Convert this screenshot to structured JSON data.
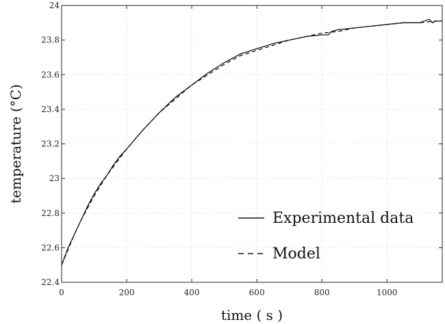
{
  "chart_data": {
    "type": "line",
    "xlabel": "time ( s )",
    "ylabel": "temperature (°C)",
    "xlim": [
      0,
      1170
    ],
    "ylim": [
      22.4,
      24.0
    ],
    "grid": true,
    "legend_position": "bottom-right",
    "x_ticks": [
      0,
      200,
      400,
      600,
      800,
      1000
    ],
    "x_tick_labels": [
      "0",
      "200",
      "400",
      "600",
      "800",
      "1000"
    ],
    "y_ticks": [
      22.4,
      22.6,
      22.8,
      23.0,
      23.2,
      23.4,
      23.6,
      23.8,
      24.0
    ],
    "y_tick_labels": [
      "22.4",
      "22.6",
      "22.8",
      "23",
      "23.2",
      "23.4",
      "23.6",
      "23.8",
      "24"
    ],
    "series": [
      {
        "name": "Experimental data",
        "style": "solid",
        "color": "#111111",
        "x": [
          0,
          20,
          40,
          60,
          80,
          100,
          120,
          140,
          160,
          180,
          200,
          250,
          300,
          350,
          400,
          450,
          500,
          550,
          600,
          650,
          700,
          750,
          800,
          820,
          830,
          850,
          900,
          950,
          1000,
          1050,
          1100,
          1130,
          1140,
          1150,
          1170
        ],
        "y": [
          22.5,
          22.6,
          22.68,
          22.76,
          22.84,
          22.91,
          22.97,
          23.02,
          23.08,
          23.13,
          23.17,
          23.28,
          23.38,
          23.47,
          23.54,
          23.61,
          23.67,
          23.72,
          23.75,
          23.78,
          23.8,
          23.82,
          23.83,
          23.83,
          23.85,
          23.86,
          23.87,
          23.88,
          23.89,
          23.9,
          23.9,
          23.92,
          23.9,
          23.91,
          23.91
        ]
      },
      {
        "name": "Model",
        "style": "dashed",
        "color": "#111111",
        "x": [
          0,
          20,
          40,
          60,
          80,
          100,
          120,
          140,
          160,
          180,
          200,
          250,
          300,
          350,
          400,
          450,
          500,
          550,
          600,
          650,
          700,
          750,
          800,
          850,
          900,
          950,
          1000,
          1050,
          1100,
          1150,
          1170
        ],
        "y": [
          22.5,
          22.59,
          22.68,
          22.76,
          22.83,
          22.9,
          22.96,
          23.02,
          23.07,
          23.12,
          23.17,
          23.28,
          23.38,
          23.46,
          23.54,
          23.6,
          23.66,
          23.71,
          23.74,
          23.77,
          23.8,
          23.82,
          23.84,
          23.85,
          23.87,
          23.88,
          23.89,
          23.9,
          23.9,
          23.91,
          23.91
        ]
      }
    ]
  }
}
